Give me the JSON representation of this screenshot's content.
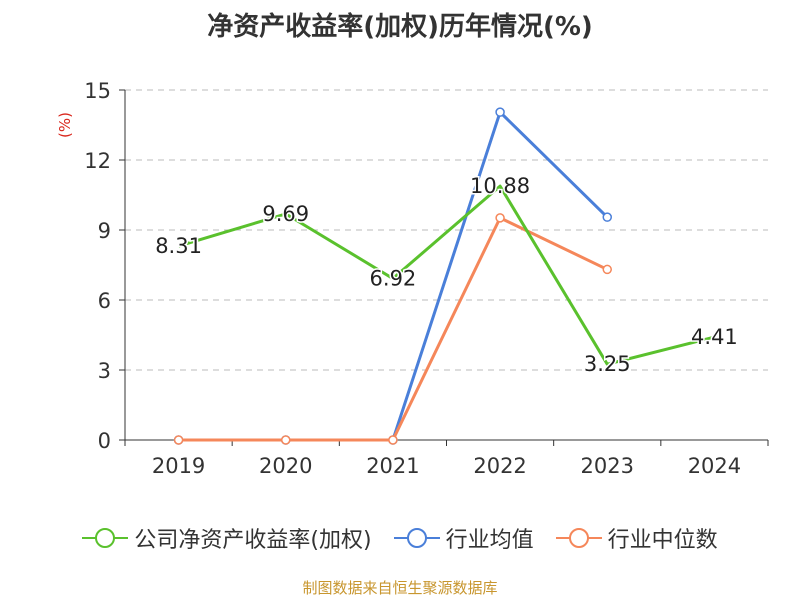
{
  "chart_data": {
    "type": "line",
    "title": "净资产收益率(加权)历年情况(%)",
    "ylabel": "(%)",
    "xlabel": "",
    "categories": [
      "2019",
      "2020",
      "2021",
      "2022",
      "2023",
      "2024"
    ],
    "ylim": [
      0,
      15
    ],
    "yticks": [
      0,
      3,
      6,
      9,
      12,
      15
    ],
    "grid": true,
    "legend_position": "bottom",
    "series": [
      {
        "name": "公司净资产收益率(加权)",
        "color": "#5ac12d",
        "values": [
          8.31,
          9.69,
          6.92,
          10.88,
          3.25,
          4.41
        ],
        "labels": [
          "8.31",
          "9.69",
          "6.92",
          "10.88",
          "3.25",
          "4.41"
        ],
        "show_markers": false
      },
      {
        "name": "行业均值",
        "color": "#4a7fd9",
        "values": [
          0,
          0,
          0,
          14.05,
          9.55,
          null
        ],
        "show_markers": true
      },
      {
        "name": "行业中位数",
        "color": "#f5875a",
        "values": [
          0,
          0,
          0,
          9.52,
          7.31,
          null
        ],
        "show_markers": true
      }
    ],
    "source": "制图数据来自恒生聚源数据库"
  }
}
